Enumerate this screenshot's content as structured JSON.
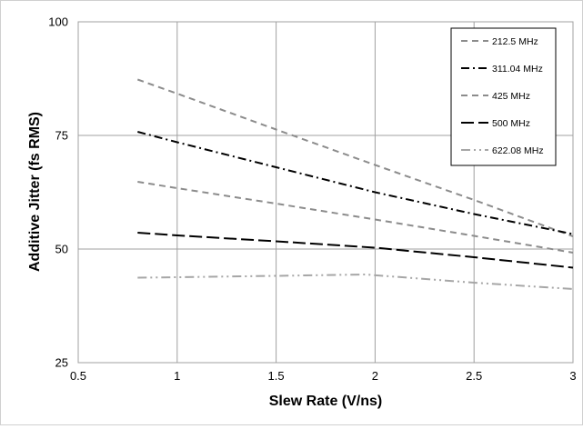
{
  "chart_data": {
    "type": "line",
    "title": "",
    "xlabel": "Slew Rate (V/ns)",
    "ylabel": "Additive Jitter (fs RMS)",
    "xlim": [
      0.5,
      3
    ],
    "ylim": [
      25,
      100
    ],
    "x_ticks": [
      "0.5",
      "1",
      "1.5",
      "2",
      "2.5",
      "3"
    ],
    "y_ticks": [
      "25",
      "50",
      "75",
      "100"
    ],
    "grid": true,
    "legend_position": "top-right",
    "series": [
      {
        "name": "212.5 MHz",
        "color": "#8c8c8c",
        "dash": "dashed",
        "x": [
          0.8,
          1,
          1.5,
          2,
          2.5,
          3
        ],
        "y": [
          87.3,
          84.2,
          76.3,
          68.5,
          60.8,
          52.8
        ]
      },
      {
        "name": "311.04 MHz",
        "color": "#000000",
        "dash": "dash-dot",
        "x": [
          0.8,
          1,
          1.5,
          2,
          2.5,
          3
        ],
        "y": [
          75.8,
          73.5,
          68.0,
          62.5,
          57.7,
          53.3
        ]
      },
      {
        "name": "425 MHz",
        "color": "#8c8c8c",
        "dash": "dashed",
        "x": [
          0.8,
          1,
          1.5,
          2,
          2.5,
          3
        ],
        "y": [
          64.8,
          63.4,
          60.0,
          56.5,
          52.9,
          49.2
        ]
      },
      {
        "name": "500 MHz",
        "color": "#000000",
        "dash": "long-dash",
        "x": [
          0.8,
          1,
          1.5,
          2,
          2.5,
          3
        ],
        "y": [
          53.6,
          53.0,
          51.7,
          50.3,
          48.2,
          45.9
        ]
      },
      {
        "name": "622.08 MHz",
        "color": "#a6a6a6",
        "dash": "dash-dot-dot",
        "x": [
          0.8,
          1,
          1.5,
          1.95,
          2.5,
          3
        ],
        "y": [
          43.7,
          43.8,
          44.1,
          44.4,
          42.6,
          41.2
        ]
      }
    ]
  }
}
